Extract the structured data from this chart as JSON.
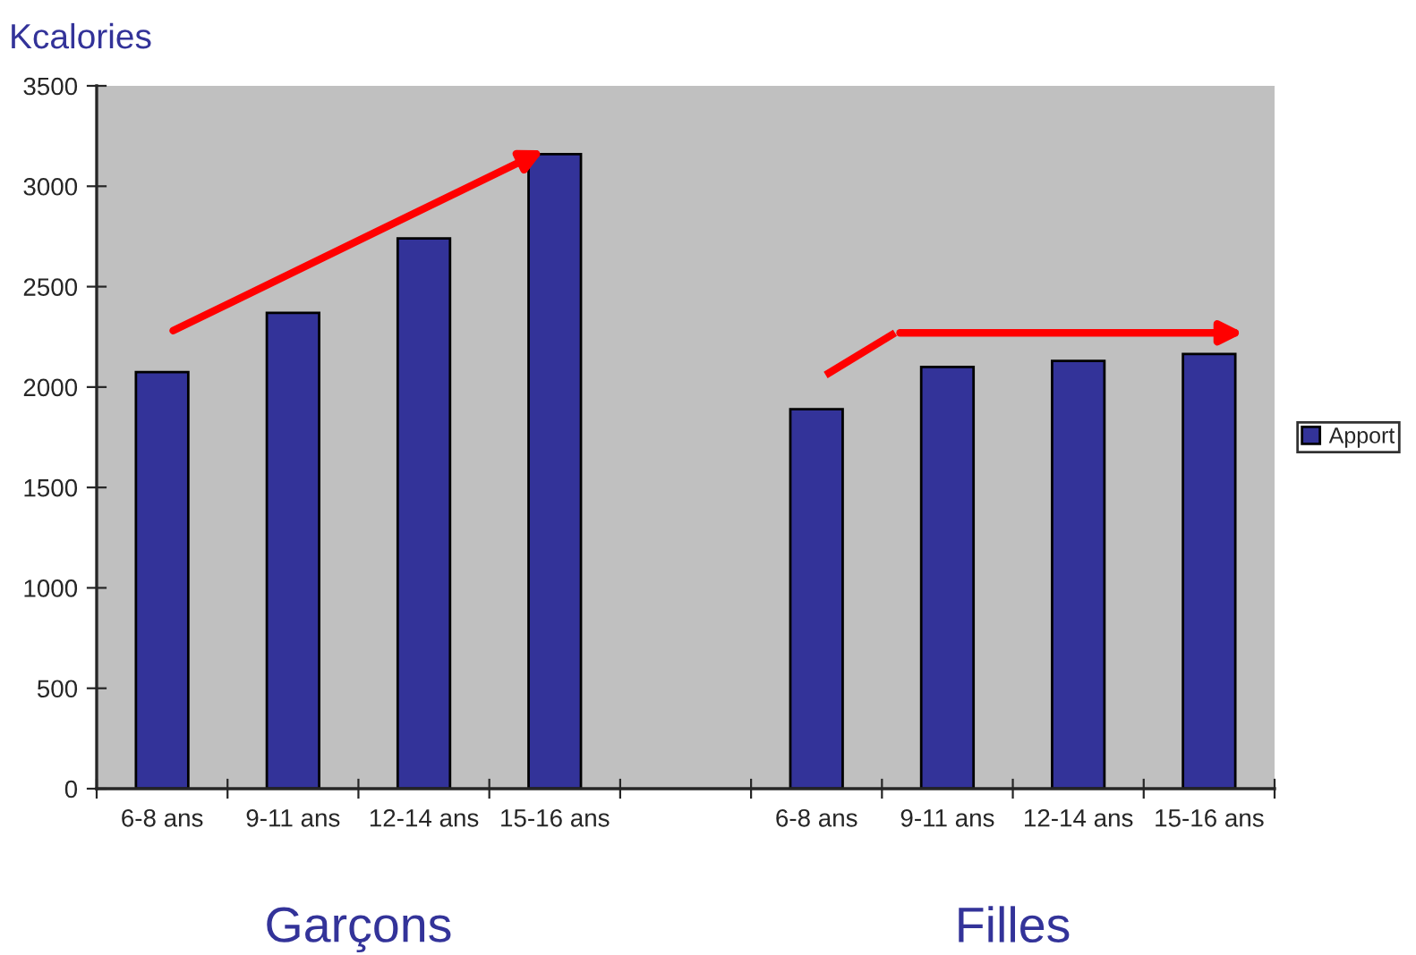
{
  "chart_data": {
    "type": "bar",
    "ylabel": "Kcalories",
    "categories": [
      "6-8 ans",
      "9-11 ans",
      "12-14 ans",
      "15-16 ans",
      null,
      "6-8 ans",
      "9-11 ans",
      "12-14 ans",
      "15-16 ans"
    ],
    "series": [
      {
        "name": "Apport",
        "color": "#333399",
        "values": [
          2075,
          2370,
          2740,
          3160,
          null,
          1890,
          2100,
          2130,
          2165
        ]
      }
    ],
    "ylim": [
      0,
      3500
    ],
    "yticks": [
      0,
      500,
      1000,
      1500,
      2000,
      2500,
      3000,
      3500
    ],
    "grid": false,
    "legend": "right",
    "annotations": [
      "Garçons",
      "Filles"
    ]
  }
}
